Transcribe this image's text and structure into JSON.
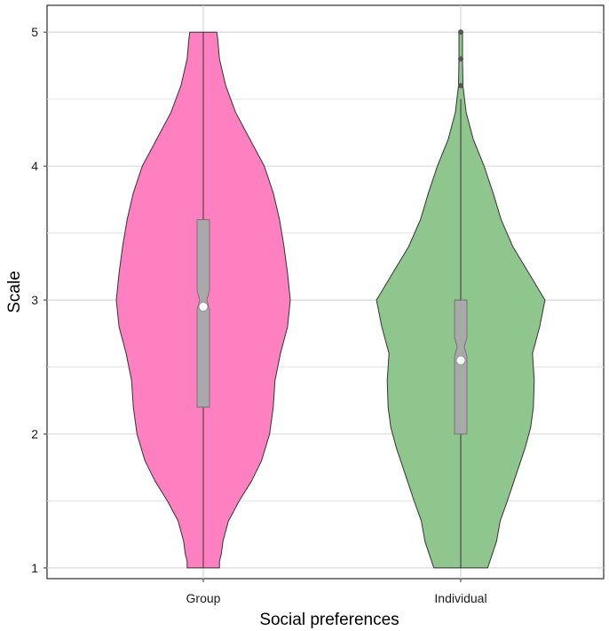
{
  "chart_data": {
    "type": "violin",
    "xlabel": "Social preferences",
    "ylabel": "Scale",
    "ylim": [
      0.92,
      5.2
    ],
    "y_ticks": [
      1,
      2,
      3,
      4,
      5
    ],
    "categories": [
      "Group",
      "Individual"
    ],
    "grid": true,
    "legend": "none",
    "series": [
      {
        "category": "Group",
        "color": "#ff80c0",
        "density_profile": [
          [
            1.0,
            0.18
          ],
          [
            1.05,
            0.18
          ],
          [
            1.1,
            0.2
          ],
          [
            1.2,
            0.22
          ],
          [
            1.35,
            0.28
          ],
          [
            1.5,
            0.4
          ],
          [
            1.65,
            0.54
          ],
          [
            1.8,
            0.65
          ],
          [
            2.0,
            0.74
          ],
          [
            2.2,
            0.78
          ],
          [
            2.4,
            0.8
          ],
          [
            2.6,
            0.86
          ],
          [
            2.8,
            0.94
          ],
          [
            3.0,
            0.97
          ],
          [
            3.2,
            0.94
          ],
          [
            3.4,
            0.9
          ],
          [
            3.6,
            0.85
          ],
          [
            3.8,
            0.78
          ],
          [
            4.0,
            0.68
          ],
          [
            4.2,
            0.52
          ],
          [
            4.4,
            0.36
          ],
          [
            4.6,
            0.25
          ],
          [
            4.8,
            0.18
          ],
          [
            4.95,
            0.16
          ],
          [
            5.0,
            0.15
          ]
        ],
        "box": {
          "q1": 2.2,
          "median": 3.0,
          "q3": 3.6,
          "whisker_low": 1.0,
          "whisker_high": 5.0,
          "mean": 2.95
        },
        "outliers": []
      },
      {
        "category": "Individual",
        "color": "#8fc68d",
        "density_profile": [
          [
            1.0,
            0.3
          ],
          [
            1.1,
            0.35
          ],
          [
            1.2,
            0.4
          ],
          [
            1.35,
            0.44
          ],
          [
            1.5,
            0.52
          ],
          [
            1.7,
            0.62
          ],
          [
            1.9,
            0.72
          ],
          [
            2.05,
            0.78
          ],
          [
            2.2,
            0.81
          ],
          [
            2.4,
            0.82
          ],
          [
            2.6,
            0.8
          ],
          [
            2.8,
            0.88
          ],
          [
            3.0,
            0.94
          ],
          [
            3.2,
            0.76
          ],
          [
            3.4,
            0.58
          ],
          [
            3.6,
            0.45
          ],
          [
            3.8,
            0.36
          ],
          [
            4.0,
            0.26
          ],
          [
            4.2,
            0.14
          ],
          [
            4.4,
            0.06
          ],
          [
            4.6,
            0.025
          ],
          [
            4.8,
            0.02
          ],
          [
            5.0,
            0.02
          ]
        ],
        "box": {
          "q1": 2.0,
          "median": 2.65,
          "q3": 3.0,
          "whisker_low": 1.0,
          "whisker_high": 4.5,
          "mean": 2.55
        },
        "outliers": [
          4.6,
          4.8,
          5.0
        ]
      }
    ]
  }
}
